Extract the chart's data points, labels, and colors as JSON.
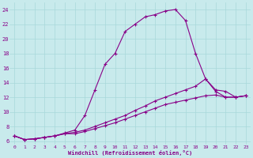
{
  "xlabel": "Windchill (Refroidissement éolien,°C)",
  "bg_color": "#c8eaec",
  "line_color": "#880088",
  "grid_color": "#a8d8da",
  "xlim": [
    -0.5,
    23.5
  ],
  "ylim": [
    5.5,
    25.0
  ],
  "xticks": [
    0,
    1,
    2,
    3,
    4,
    5,
    6,
    7,
    8,
    9,
    10,
    11,
    12,
    13,
    14,
    15,
    16,
    17,
    18,
    19,
    20,
    21,
    22,
    23
  ],
  "yticks": [
    6,
    8,
    10,
    12,
    14,
    16,
    18,
    20,
    22,
    24
  ],
  "line1_x": [
    0,
    1,
    2,
    3,
    4,
    5,
    6,
    7,
    8,
    9,
    10,
    11,
    12,
    13,
    14,
    15,
    16,
    17,
    18,
    19,
    20,
    21,
    22,
    23
  ],
  "line1_y": [
    6.7,
    6.2,
    6.3,
    6.5,
    6.7,
    7.1,
    7.5,
    9.5,
    13.0,
    16.5,
    18.0,
    21.0,
    22.0,
    23.0,
    23.3,
    23.8,
    24.0,
    22.5,
    18.0,
    14.5,
    13.0,
    12.8,
    12.0,
    12.2
  ],
  "line2_x": [
    0,
    1,
    2,
    3,
    4,
    5,
    6,
    7,
    8,
    9,
    10,
    11,
    12,
    13,
    14,
    15,
    16,
    17,
    18,
    19,
    20,
    21,
    22,
    23
  ],
  "line2_y": [
    6.7,
    6.2,
    6.3,
    6.5,
    6.7,
    7.0,
    7.2,
    7.5,
    8.0,
    8.5,
    9.0,
    9.5,
    10.2,
    10.8,
    11.5,
    12.0,
    12.5,
    13.0,
    13.5,
    14.5,
    12.8,
    12.0,
    12.0,
    12.2
  ],
  "line3_x": [
    0,
    1,
    2,
    3,
    4,
    5,
    6,
    7,
    8,
    9,
    10,
    11,
    12,
    13,
    14,
    15,
    16,
    17,
    18,
    19,
    20,
    21,
    22,
    23
  ],
  "line3_y": [
    6.7,
    6.2,
    6.3,
    6.5,
    6.7,
    7.0,
    7.0,
    7.3,
    7.7,
    8.1,
    8.5,
    9.0,
    9.5,
    10.0,
    10.5,
    11.0,
    11.3,
    11.6,
    11.9,
    12.2,
    12.3,
    12.0,
    12.0,
    12.2
  ]
}
